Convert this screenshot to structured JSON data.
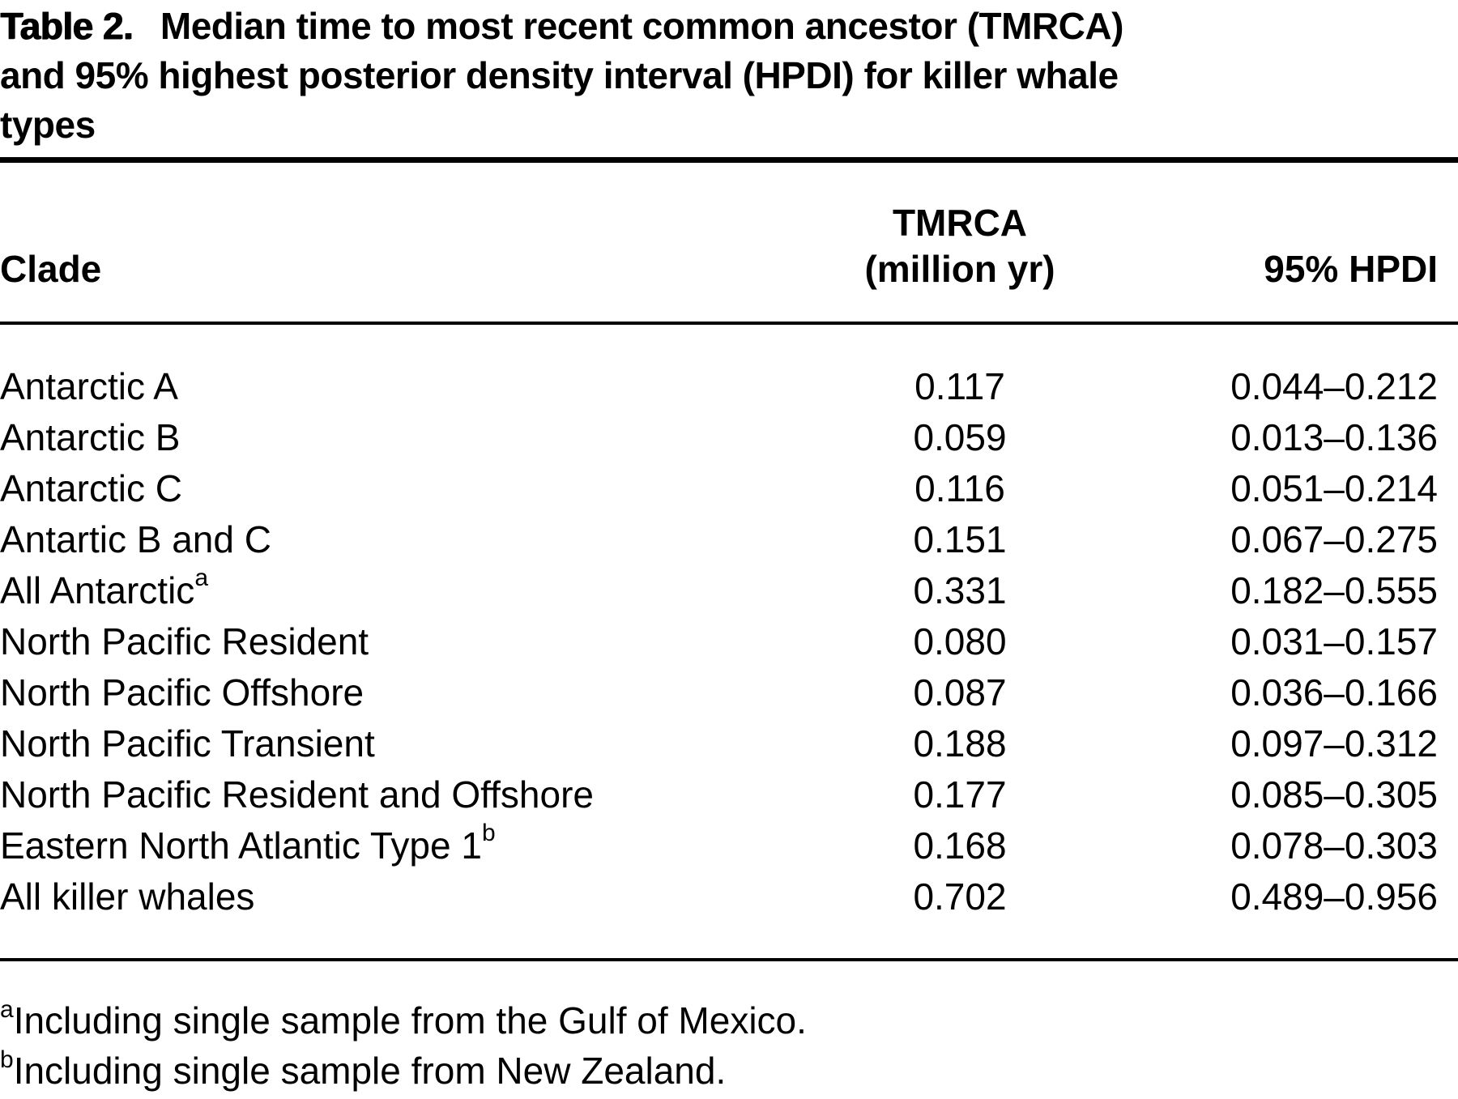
{
  "title": {
    "label": "Table 2.",
    "lines": [
      "Median time to most recent common ancestor (TMRCA)",
      "and 95% highest posterior density interval (HPDI) for killer whale",
      "types"
    ]
  },
  "table": {
    "columns": {
      "clade": "Clade",
      "tmrca_line1": "TMRCA",
      "tmrca_line2": "(million yr)",
      "hpdi": "95% HPDI"
    },
    "rows": [
      {
        "clade": "Antarctic A",
        "sup": "",
        "tmrca": "0.117",
        "hpdi": "0.044–0.212"
      },
      {
        "clade": "Antarctic B",
        "sup": "",
        "tmrca": "0.059",
        "hpdi": "0.013–0.136"
      },
      {
        "clade": "Antarctic C",
        "sup": "",
        "tmrca": "0.116",
        "hpdi": "0.051–0.214"
      },
      {
        "clade": "Antartic B and C",
        "sup": "",
        "tmrca": "0.151",
        "hpdi": "0.067–0.275"
      },
      {
        "clade": "All Antarctic",
        "sup": "a",
        "tmrca": "0.331",
        "hpdi": "0.182–0.555"
      },
      {
        "clade": "North Pacific Resident",
        "sup": "",
        "tmrca": "0.080",
        "hpdi": "0.031–0.157"
      },
      {
        "clade": "North Pacific Offshore",
        "sup": "",
        "tmrca": "0.087",
        "hpdi": "0.036–0.166"
      },
      {
        "clade": "North Pacific Transient",
        "sup": "",
        "tmrca": "0.188",
        "hpdi": "0.097–0.312"
      },
      {
        "clade": "North Pacific Resident and Offshore",
        "sup": "",
        "tmrca": "0.177",
        "hpdi": "0.085–0.305"
      },
      {
        "clade": "Eastern North Atlantic Type 1",
        "sup": "b",
        "tmrca": "0.168",
        "hpdi": "0.078–0.303"
      },
      {
        "clade": "All killer whales",
        "sup": "",
        "tmrca": "0.702",
        "hpdi": "0.489–0.956"
      }
    ]
  },
  "footnotes": [
    {
      "sup": "a",
      "text": "Including single sample from the Gulf of Mexico."
    },
    {
      "sup": "b",
      "text": "Including single sample from New Zealand."
    }
  ]
}
